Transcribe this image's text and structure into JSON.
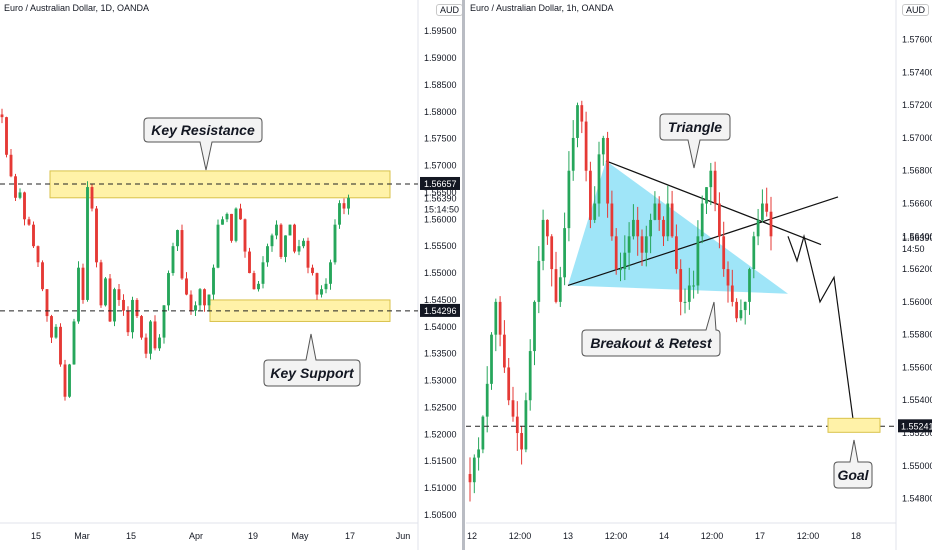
{
  "left_panel": {
    "title": "Euro / Australian Dollar, 1D, OANDA",
    "currency": "AUD",
    "price_ticks": [
      "1.59500",
      "1.59000",
      "1.58500",
      "1.58000",
      "1.57500",
      "1.57000",
      "1.56500",
      "1.56000",
      "1.55500",
      "1.55000",
      "1.54500",
      "1.54000",
      "1.53500",
      "1.53000",
      "1.52500",
      "1.52000",
      "1.51500",
      "1.51000",
      "1.50500"
    ],
    "time_ticks": [
      "15",
      "Mar",
      "15",
      "Apr",
      "19",
      "May",
      "17",
      "Jun"
    ],
    "resistance_tag": "1.56657",
    "support_tag": "1.54296",
    "last_price": "1.56390",
    "countdown": "15:14:50",
    "annotations": {
      "resistance": "Key Resistance",
      "support": "Key Support"
    }
  },
  "right_panel": {
    "title": "Euro / Australian Dollar, 1h, OANDA",
    "currency": "AUD",
    "price_ticks": [
      "1.57600",
      "1.57400",
      "1.57200",
      "1.57000",
      "1.56800",
      "1.56600",
      "1.56400",
      "1.56200",
      "1.56000",
      "1.55800",
      "1.55600",
      "1.55400",
      "1.55200",
      "1.55000",
      "1.54800"
    ],
    "time_ticks": [
      "12",
      "12:00",
      "13",
      "12:00",
      "14",
      "12:00",
      "17",
      "12:00",
      "18"
    ],
    "goal_tag": "1.55241",
    "last_price": "1.56390",
    "countdown": "14:50",
    "annotations": {
      "triangle": "Triangle",
      "breakout": "Breakout & Retest",
      "goal": "Goal"
    }
  },
  "colors": {
    "up": "#26a65b",
    "down": "#e53935",
    "zone": "#fff2a8",
    "triangle": "#7fdcf5"
  },
  "chart_data": [
    {
      "type": "candlestick",
      "title": "Euro / Australian Dollar, 1D, OANDA",
      "x_ticks": [
        "15",
        "Mar",
        "15",
        "Apr",
        "19",
        "May",
        "17",
        "Jun"
      ],
      "ylim": [
        1.505,
        1.598
      ],
      "resistance_zone": [
        1.564,
        1.569
      ],
      "support_zone": [
        1.541,
        1.545
      ],
      "resistance_level": 1.56657,
      "support_level": 1.54296,
      "closes": [
        1.579,
        1.572,
        1.568,
        1.564,
        1.565,
        1.56,
        1.559,
        1.555,
        1.552,
        1.547,
        1.542,
        1.538,
        1.54,
        1.533,
        1.527,
        1.533,
        1.541,
        1.551,
        1.545,
        1.566,
        1.562,
        1.552,
        1.544,
        1.549,
        1.541,
        1.547,
        1.545,
        1.543,
        1.539,
        1.545,
        1.542,
        1.538,
        1.535,
        1.541,
        1.536,
        1.538,
        1.544,
        1.55,
        1.555,
        1.558,
        1.549,
        1.546,
        1.543,
        1.544,
        1.547,
        1.544,
        1.546,
        1.551,
        1.559,
        1.56,
        1.561,
        1.556,
        1.562,
        1.56,
        1.554,
        1.55,
        1.547,
        1.548,
        1.552,
        1.555,
        1.557,
        1.559,
        1.553,
        1.557,
        1.559,
        1.554,
        1.555,
        1.556,
        1.551,
        1.55,
        1.546,
        1.547,
        1.548,
        1.552,
        1.559,
        1.563,
        1.562,
        1.564
      ],
      "last": 1.5639
    },
    {
      "type": "candlestick",
      "title": "Euro / Australian Dollar, 1h, OANDA",
      "x_ticks": [
        "12",
        "12:00",
        "13",
        "12:00",
        "14",
        "12:00",
        "17",
        "12:00",
        "18"
      ],
      "ylim": [
        1.547,
        1.5775
      ],
      "goal_level": 1.55241,
      "triangle_vertices": [
        [
          1.566,
          1.5686
        ],
        [
          1.5576,
          1.561
        ],
        [
          1.558,
          1.5605
        ]
      ],
      "closes": [
        1.549,
        1.5505,
        1.551,
        1.553,
        1.555,
        1.558,
        1.56,
        1.558,
        1.556,
        1.554,
        1.553,
        1.552,
        1.551,
        1.554,
        1.557,
        1.56,
        1.5625,
        1.565,
        1.564,
        1.562,
        1.56,
        1.5615,
        1.5645,
        1.568,
        1.57,
        1.572,
        1.571,
        1.568,
        1.565,
        1.566,
        1.569,
        1.57,
        1.566,
        1.564,
        1.562,
        1.562,
        1.563,
        1.564,
        1.565,
        1.564,
        1.563,
        1.564,
        1.565,
        1.566,
        1.565,
        1.564,
        1.566,
        1.564,
        1.562,
        1.56,
        1.56,
        1.561,
        1.561,
        1.564,
        1.566,
        1.567,
        1.568,
        1.566,
        1.564,
        1.562,
        1.561,
        1.56,
        1.559,
        1.5595,
        1.56,
        1.562,
        1.564,
        1.565,
        1.566,
        1.5655,
        1.564
      ],
      "projection": [
        1.564,
        1.5625,
        1.564,
        1.56,
        1.5615,
        1.5524
      ],
      "last": 1.5639
    }
  ]
}
